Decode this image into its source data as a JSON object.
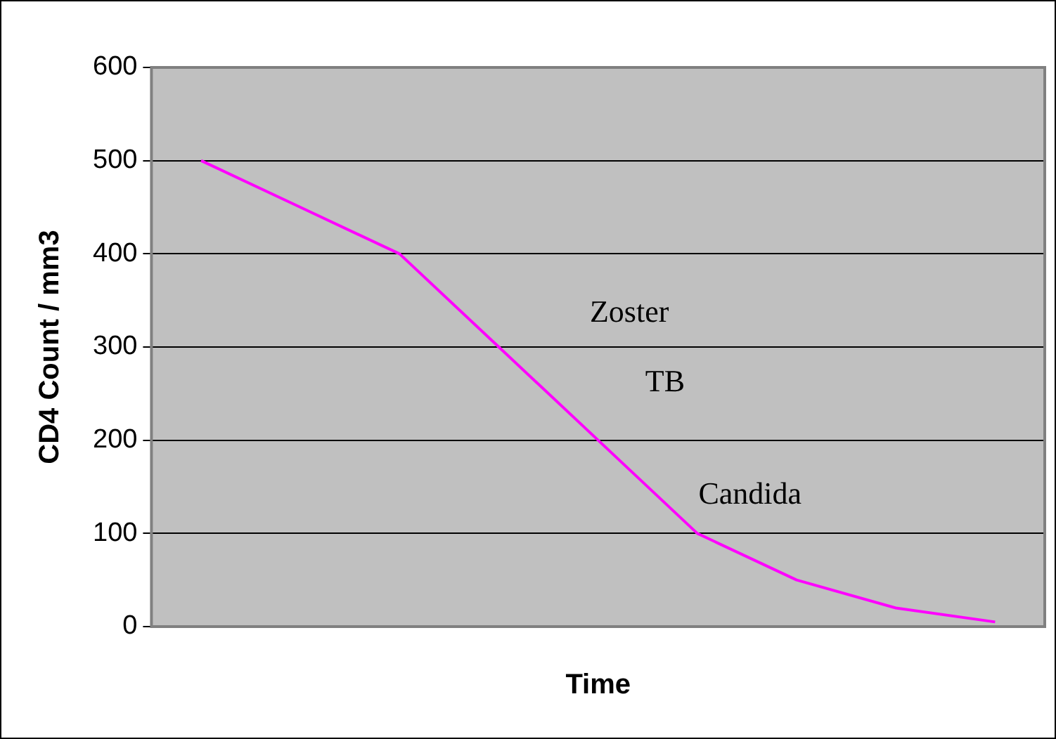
{
  "chart_data": {
    "type": "line",
    "xlabel": "Time",
    "ylabel": "CD4 Count / mm3",
    "categories": [
      null,
      null,
      null,
      null,
      null,
      null,
      null,
      null,
      null
    ],
    "series": [
      {
        "color": "#ff00ff",
        "values": [
          500,
          450,
          400,
          300,
          200,
          100,
          50,
          20,
          5
        ]
      }
    ],
    "ylim": [
      0,
      600
    ],
    "yticks": [
      0,
      100,
      200,
      300,
      400,
      500,
      600
    ],
    "annotations": [
      "Zoster",
      "TB",
      "Candida"
    ],
    "grid": "y",
    "legend": false,
    "marker": "none",
    "line_style": "solid",
    "tick_labels": "y"
  }
}
